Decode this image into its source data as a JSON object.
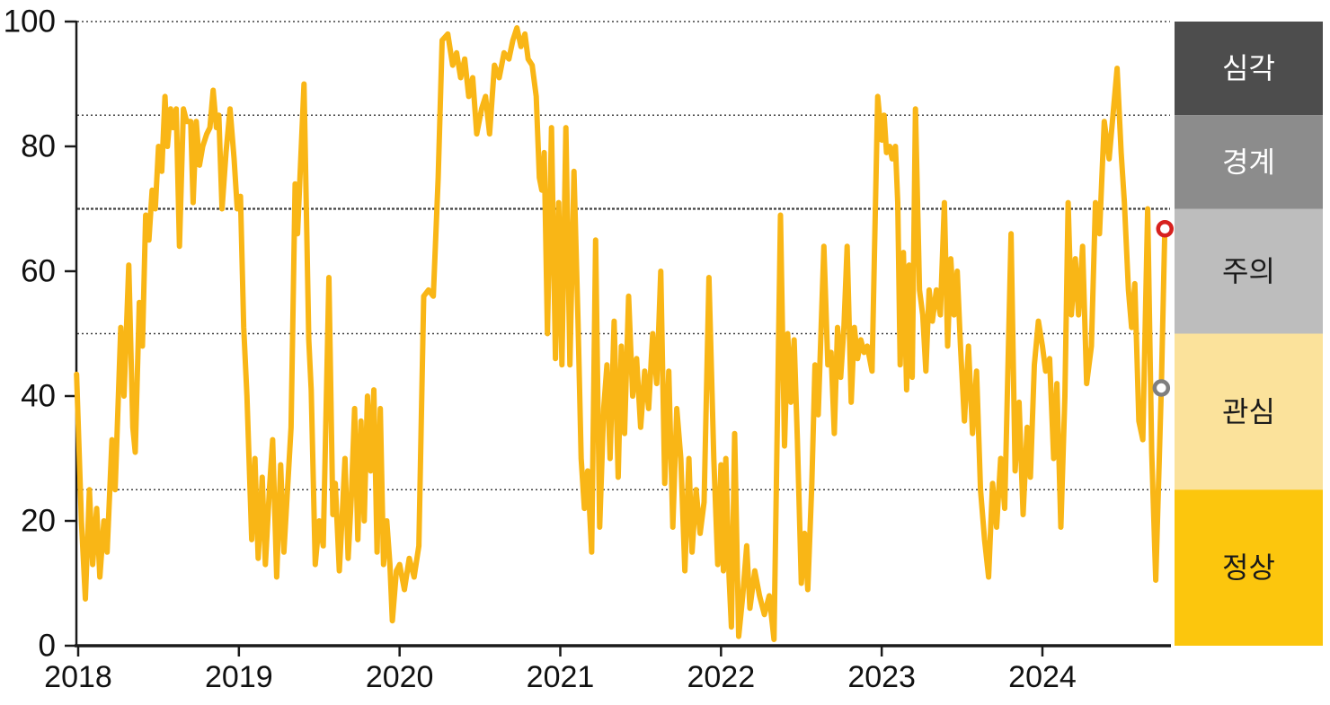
{
  "chart_data": {
    "type": "line",
    "title": "",
    "x_axis": {
      "tick_values": [
        2018,
        2019,
        2020,
        2021,
        2022,
        2023,
        2024
      ],
      "tick_labels": [
        "2018",
        "2019",
        "2020",
        "2021",
        "2022",
        "2023",
        "2024"
      ],
      "range": [
        2017.99,
        2024.8
      ]
    },
    "y_axis": {
      "tick_values": [
        0,
        20,
        40,
        60,
        80,
        100
      ],
      "tick_labels": [
        "0",
        "20",
        "40",
        "60",
        "80",
        "100"
      ],
      "range": [
        0,
        100
      ],
      "gridlines": [
        25,
        50,
        70,
        85,
        100
      ],
      "emphasized_gridline": 70
    },
    "grid_on": true,
    "legend_position": "right-bands",
    "bands": [
      {
        "label": "심각",
        "from": 85,
        "to": 100,
        "color": "#4D4D4D",
        "text_color": "#FFFFFF"
      },
      {
        "label": "경계",
        "from": 70,
        "to": 85,
        "color": "#8C8C8C",
        "text_color": "#FFFFFF"
      },
      {
        "label": "주의",
        "from": 50,
        "to": 70,
        "color": "#BDBDBD",
        "text_color": "#1A1A1A"
      },
      {
        "label": "관심",
        "from": 25,
        "to": 50,
        "color": "#FBE29B",
        "text_color": "#1A1A1A"
      },
      {
        "label": "정상",
        "from": 0,
        "to": 25,
        "color": "#FCC60D",
        "text_color": "#1A1A1A"
      }
    ],
    "series": [
      {
        "color": "#F9B616",
        "points": [
          [
            2017.99,
            43.5
          ],
          [
            2018.02,
            20
          ],
          [
            2018.045,
            7.5
          ],
          [
            2018.07,
            25
          ],
          [
            2018.09,
            13
          ],
          [
            2018.115,
            22
          ],
          [
            2018.135,
            11
          ],
          [
            2018.16,
            20
          ],
          [
            2018.18,
            15
          ],
          [
            2018.21,
            33
          ],
          [
            2018.23,
            25
          ],
          [
            2018.265,
            51
          ],
          [
            2018.285,
            40
          ],
          [
            2018.315,
            61
          ],
          [
            2018.34,
            35
          ],
          [
            2018.355,
            31
          ],
          [
            2018.38,
            55
          ],
          [
            2018.4,
            48
          ],
          [
            2018.42,
            69
          ],
          [
            2018.44,
            65
          ],
          [
            2018.46,
            73
          ],
          [
            2018.48,
            70
          ],
          [
            2018.5,
            80
          ],
          [
            2018.52,
            76
          ],
          [
            2018.54,
            88
          ],
          [
            2018.555,
            80
          ],
          [
            2018.575,
            86
          ],
          [
            2018.59,
            83
          ],
          [
            2018.61,
            86
          ],
          [
            2018.63,
            64
          ],
          [
            2018.655,
            86
          ],
          [
            2018.675,
            84
          ],
          [
            2018.7,
            84
          ],
          [
            2018.715,
            71
          ],
          [
            2018.735,
            84
          ],
          [
            2018.755,
            77
          ],
          [
            2018.775,
            80
          ],
          [
            2018.8,
            82
          ],
          [
            2018.82,
            83
          ],
          [
            2018.84,
            89
          ],
          [
            2018.86,
            83
          ],
          [
            2018.875,
            85
          ],
          [
            2018.895,
            70
          ],
          [
            2018.92,
            79
          ],
          [
            2018.945,
            86
          ],
          [
            2018.97,
            78
          ],
          [
            2018.99,
            70
          ],
          [
            2019.01,
            72
          ],
          [
            2019.03,
            51
          ],
          [
            2019.05,
            40
          ],
          [
            2019.08,
            17
          ],
          [
            2019.1,
            30
          ],
          [
            2019.12,
            14
          ],
          [
            2019.145,
            27
          ],
          [
            2019.165,
            13
          ],
          [
            2019.19,
            25
          ],
          [
            2019.21,
            33
          ],
          [
            2019.235,
            11
          ],
          [
            2019.26,
            29
          ],
          [
            2019.28,
            15
          ],
          [
            2019.3,
            24
          ],
          [
            2019.325,
            35
          ],
          [
            2019.35,
            74
          ],
          [
            2019.365,
            66
          ],
          [
            2019.405,
            90
          ],
          [
            2019.435,
            49
          ],
          [
            2019.45,
            41
          ],
          [
            2019.475,
            13
          ],
          [
            2019.5,
            20
          ],
          [
            2019.525,
            16
          ],
          [
            2019.56,
            59
          ],
          [
            2019.585,
            21
          ],
          [
            2019.6,
            26
          ],
          [
            2019.625,
            12
          ],
          [
            2019.645,
            22
          ],
          [
            2019.66,
            30
          ],
          [
            2019.68,
            14
          ],
          [
            2019.7,
            24
          ],
          [
            2019.72,
            38
          ],
          [
            2019.74,
            17
          ],
          [
            2019.76,
            36
          ],
          [
            2019.78,
            20
          ],
          [
            2019.8,
            40
          ],
          [
            2019.82,
            28
          ],
          [
            2019.84,
            41
          ],
          [
            2019.86,
            15
          ],
          [
            2019.88,
            38
          ],
          [
            2019.9,
            13
          ],
          [
            2019.92,
            20
          ],
          [
            2019.94,
            13
          ],
          [
            2019.955,
            4
          ],
          [
            2019.98,
            12
          ],
          [
            2020.0,
            13
          ],
          [
            2020.03,
            9
          ],
          [
            2020.06,
            14
          ],
          [
            2020.09,
            11
          ],
          [
            2020.12,
            16
          ],
          [
            2020.15,
            56
          ],
          [
            2020.18,
            57
          ],
          [
            2020.21,
            56
          ],
          [
            2020.24,
            75
          ],
          [
            2020.265,
            97
          ],
          [
            2020.3,
            98
          ],
          [
            2020.33,
            93
          ],
          [
            2020.355,
            95
          ],
          [
            2020.38,
            91
          ],
          [
            2020.405,
            94
          ],
          [
            2020.43,
            88
          ],
          [
            2020.455,
            91
          ],
          [
            2020.48,
            82
          ],
          [
            2020.51,
            86
          ],
          [
            2020.535,
            88
          ],
          [
            2020.56,
            82
          ],
          [
            2020.59,
            93
          ],
          [
            2020.62,
            91
          ],
          [
            2020.65,
            95
          ],
          [
            2020.68,
            94
          ],
          [
            2020.705,
            97
          ],
          [
            2020.73,
            99
          ],
          [
            2020.755,
            96
          ],
          [
            2020.78,
            98
          ],
          [
            2020.8,
            94
          ],
          [
            2020.825,
            93
          ],
          [
            2020.85,
            88
          ],
          [
            2020.87,
            75
          ],
          [
            2020.885,
            73
          ],
          [
            2020.9,
            79
          ],
          [
            2020.92,
            50
          ],
          [
            2020.945,
            83
          ],
          [
            2020.97,
            46
          ],
          [
            2020.99,
            71
          ],
          [
            2021.01,
            45
          ],
          [
            2021.035,
            83
          ],
          [
            2021.06,
            45
          ],
          [
            2021.085,
            76
          ],
          [
            2021.11,
            52
          ],
          [
            2021.13,
            30
          ],
          [
            2021.15,
            22
          ],
          [
            2021.17,
            28
          ],
          [
            2021.195,
            15
          ],
          [
            2021.22,
            65
          ],
          [
            2021.245,
            19
          ],
          [
            2021.27,
            38
          ],
          [
            2021.29,
            45
          ],
          [
            2021.31,
            30
          ],
          [
            2021.335,
            52
          ],
          [
            2021.36,
            27
          ],
          [
            2021.38,
            48
          ],
          [
            2021.4,
            34
          ],
          [
            2021.425,
            56
          ],
          [
            2021.45,
            40
          ],
          [
            2021.475,
            46
          ],
          [
            2021.5,
            35
          ],
          [
            2021.525,
            44
          ],
          [
            2021.55,
            38
          ],
          [
            2021.575,
            50
          ],
          [
            2021.6,
            42
          ],
          [
            2021.625,
            60
          ],
          [
            2021.65,
            26
          ],
          [
            2021.675,
            44
          ],
          [
            2021.7,
            19
          ],
          [
            2021.725,
            38
          ],
          [
            2021.75,
            30
          ],
          [
            2021.775,
            12
          ],
          [
            2021.8,
            30
          ],
          [
            2021.82,
            15
          ],
          [
            2021.845,
            25
          ],
          [
            2021.87,
            18
          ],
          [
            2021.895,
            23
          ],
          [
            2021.925,
            59
          ],
          [
            2021.955,
            30
          ],
          [
            2021.98,
            13
          ],
          [
            2022.0,
            29
          ],
          [
            2022.015,
            12
          ],
          [
            2022.03,
            30
          ],
          [
            2022.05,
            11
          ],
          [
            2022.065,
            3
          ],
          [
            2022.085,
            34
          ],
          [
            2022.11,
            1.5
          ],
          [
            2022.135,
            8
          ],
          [
            2022.16,
            16
          ],
          [
            2022.18,
            6
          ],
          [
            2022.21,
            12
          ],
          [
            2022.24,
            8
          ],
          [
            2022.27,
            5
          ],
          [
            2022.3,
            8
          ],
          [
            2022.33,
            1
          ],
          [
            2022.37,
            69
          ],
          [
            2022.395,
            32
          ],
          [
            2022.415,
            50
          ],
          [
            2022.435,
            39
          ],
          [
            2022.455,
            49
          ],
          [
            2022.475,
            33
          ],
          [
            2022.5,
            10
          ],
          [
            2022.52,
            18
          ],
          [
            2022.54,
            9
          ],
          [
            2022.565,
            26
          ],
          [
            2022.585,
            45
          ],
          [
            2022.605,
            37
          ],
          [
            2022.64,
            64
          ],
          [
            2022.665,
            45
          ],
          [
            2022.685,
            47
          ],
          [
            2022.705,
            34
          ],
          [
            2022.725,
            51
          ],
          [
            2022.745,
            43
          ],
          [
            2022.765,
            51
          ],
          [
            2022.785,
            64
          ],
          [
            2022.81,
            39
          ],
          [
            2022.83,
            51
          ],
          [
            2022.85,
            46
          ],
          [
            2022.87,
            49
          ],
          [
            2022.89,
            47
          ],
          [
            2022.91,
            48
          ],
          [
            2022.94,
            44
          ],
          [
            2022.955,
            63
          ],
          [
            2022.975,
            88
          ],
          [
            2023.0,
            81
          ],
          [
            2023.015,
            85
          ],
          [
            2023.03,
            79
          ],
          [
            2023.05,
            80
          ],
          [
            2023.065,
            78
          ],
          [
            2023.085,
            80
          ],
          [
            2023.1,
            71
          ],
          [
            2023.115,
            45
          ],
          [
            2023.135,
            63
          ],
          [
            2023.155,
            41
          ],
          [
            2023.17,
            61
          ],
          [
            2023.19,
            43
          ],
          [
            2023.21,
            86
          ],
          [
            2023.235,
            57
          ],
          [
            2023.255,
            53
          ],
          [
            2023.275,
            44
          ],
          [
            2023.295,
            57
          ],
          [
            2023.315,
            52
          ],
          [
            2023.34,
            57
          ],
          [
            2023.365,
            53
          ],
          [
            2023.39,
            71
          ],
          [
            2023.41,
            48
          ],
          [
            2023.43,
            62
          ],
          [
            2023.45,
            53
          ],
          [
            2023.47,
            60
          ],
          [
            2023.49,
            48
          ],
          [
            2023.515,
            36
          ],
          [
            2023.54,
            48
          ],
          [
            2023.565,
            34
          ],
          [
            2023.59,
            44
          ],
          [
            2023.615,
            25
          ],
          [
            2023.64,
            17
          ],
          [
            2023.665,
            11
          ],
          [
            2023.69,
            26
          ],
          [
            2023.715,
            19
          ],
          [
            2023.74,
            30
          ],
          [
            2023.765,
            22
          ],
          [
            2023.805,
            66
          ],
          [
            2023.83,
            28
          ],
          [
            2023.855,
            39
          ],
          [
            2023.88,
            21
          ],
          [
            2023.905,
            35
          ],
          [
            2023.925,
            27
          ],
          [
            2023.95,
            45
          ],
          [
            2023.975,
            52
          ],
          [
            2024.0,
            48
          ],
          [
            2024.02,
            44
          ],
          [
            2024.045,
            46
          ],
          [
            2024.07,
            30
          ],
          [
            2024.09,
            42
          ],
          [
            2024.115,
            19
          ],
          [
            2024.14,
            40
          ],
          [
            2024.16,
            71
          ],
          [
            2024.18,
            53
          ],
          [
            2024.205,
            62
          ],
          [
            2024.225,
            53
          ],
          [
            2024.25,
            64
          ],
          [
            2024.275,
            42
          ],
          [
            2024.305,
            48
          ],
          [
            2024.33,
            71
          ],
          [
            2024.355,
            66
          ],
          [
            2024.385,
            84
          ],
          [
            2024.415,
            78
          ],
          [
            2024.465,
            92.5
          ],
          [
            2024.49,
            79
          ],
          [
            2024.51,
            71
          ],
          [
            2024.535,
            57
          ],
          [
            2024.555,
            51
          ],
          [
            2024.575,
            58
          ],
          [
            2024.6,
            36
          ],
          [
            2024.625,
            33
          ],
          [
            2024.655,
            70
          ],
          [
            2024.68,
            31
          ],
          [
            2024.705,
            10.5
          ],
          [
            2024.74,
            41.3
          ],
          [
            2024.762,
            66.8
          ]
        ]
      }
    ],
    "end_markers": [
      {
        "x": 2024.762,
        "y": 66.8,
        "color": "#D7211E"
      },
      {
        "x": 2024.74,
        "y": 41.3,
        "color": "#7F7F7F"
      }
    ]
  },
  "style": {
    "axis_color": "#1A1A1A",
    "grid_color": "#404040",
    "label_color": "#111111",
    "background": "#FFFFFF"
  }
}
